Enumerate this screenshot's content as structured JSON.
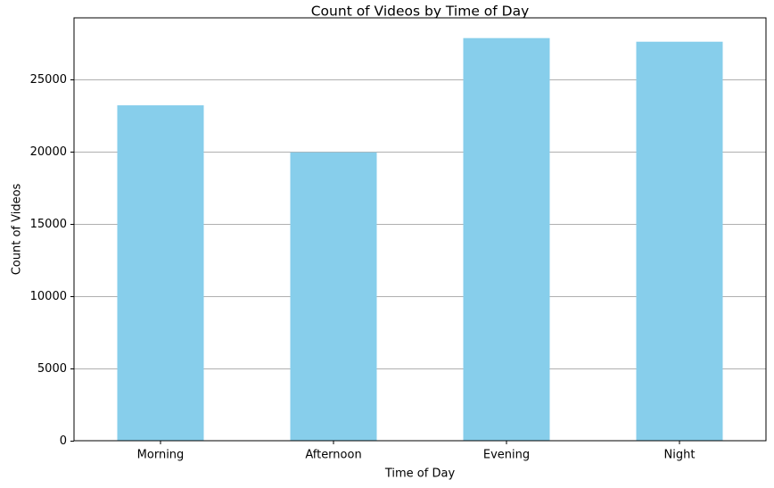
{
  "chart_data": {
    "type": "bar",
    "title": "Count of Videos by Time of Day",
    "xlabel": "Time of Day",
    "ylabel": "Count of Videos",
    "categories": [
      "Morning",
      "Afternoon",
      "Evening",
      "Night"
    ],
    "values": [
      23200,
      19950,
      27850,
      27600
    ],
    "ylim": [
      0,
      29250
    ],
    "yticks": [
      0,
      5000,
      10000,
      15000,
      20000,
      25000
    ],
    "ytick_labels": [
      "0",
      "5000",
      "10000",
      "15000",
      "20000",
      "25000"
    ],
    "grid": "y-axis only",
    "legend": "none",
    "bar_color": "#87CEEB",
    "grid_color": "#b0b0b0"
  }
}
